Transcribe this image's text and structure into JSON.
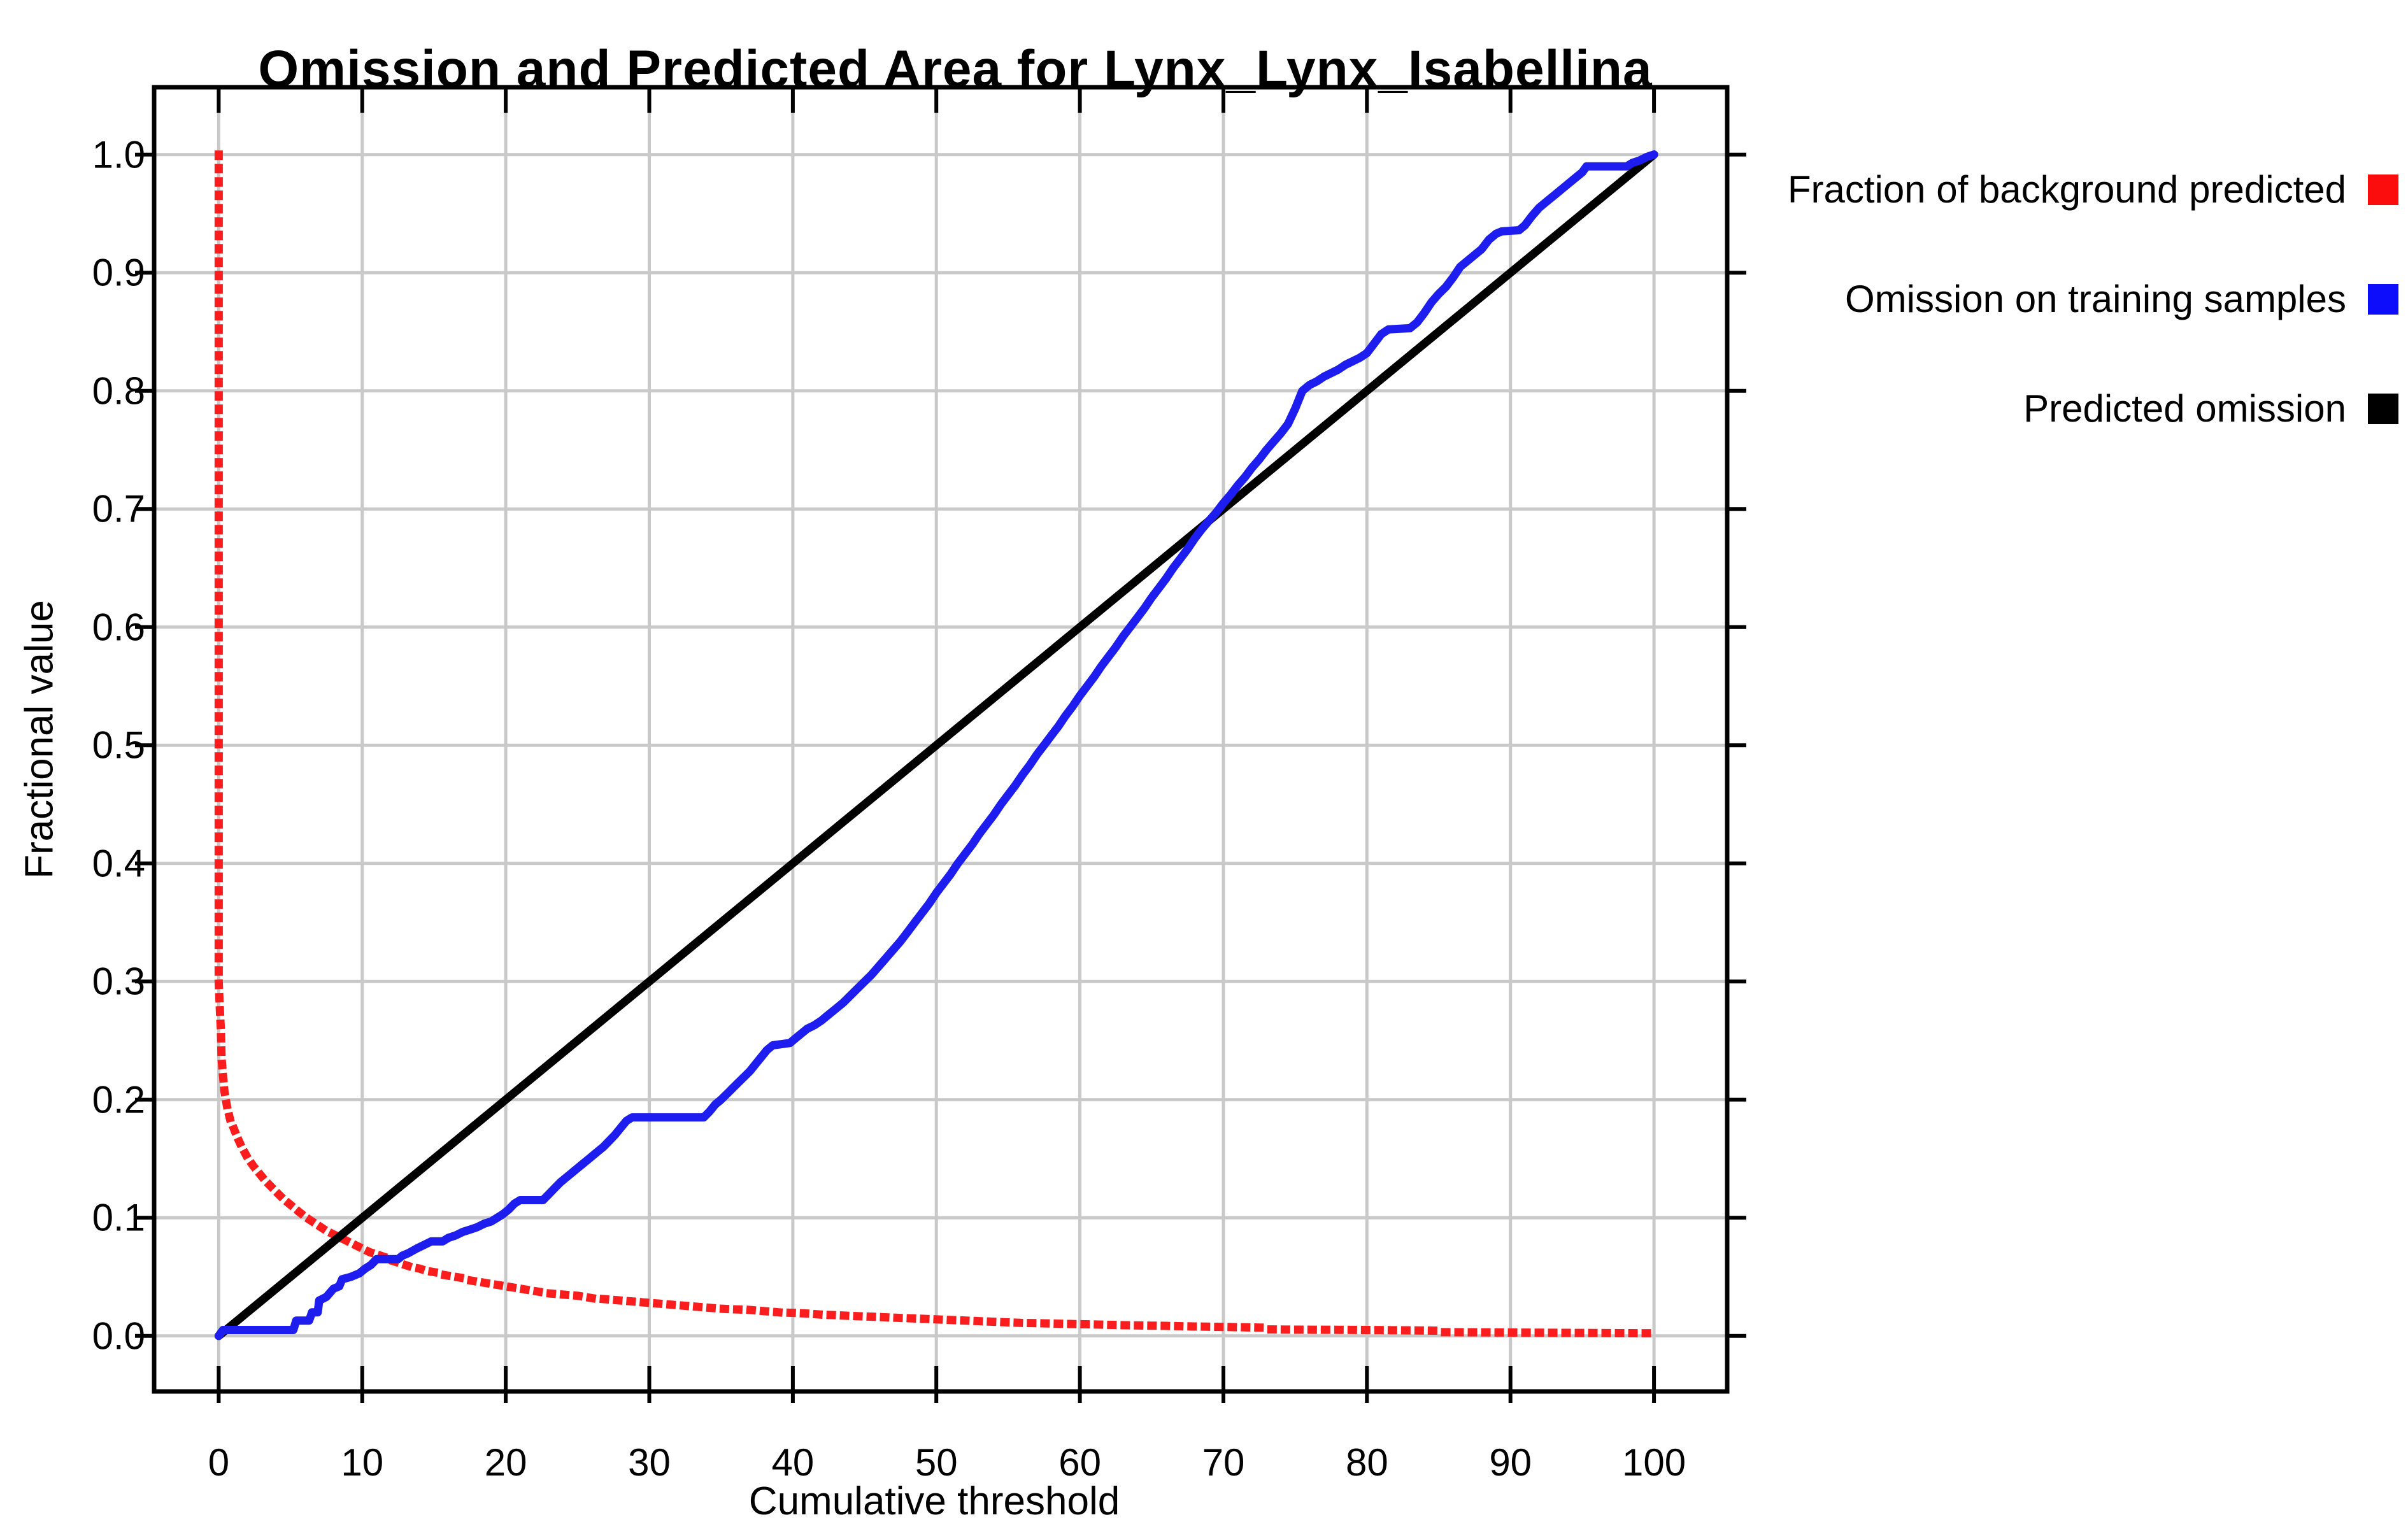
{
  "page": {
    "background": "#ffffff"
  },
  "chart_data": {
    "type": "line",
    "title": "Omission and Predicted Area for Lynx_Lynx_Isabellina",
    "xlabel": "Cumulative threshold",
    "ylabel": "Fractional value",
    "xlim": [
      -4.5,
      105.1
    ],
    "ylim": [
      -0.047,
      1.057
    ],
    "x_ticks": [
      0,
      10,
      20,
      30,
      40,
      50,
      60,
      70,
      80,
      90,
      100
    ],
    "x_tick_labels": [
      "0",
      "10",
      "20",
      "30",
      "40",
      "50",
      "60",
      "70",
      "80",
      "90",
      "100"
    ],
    "y_ticks": [
      0.0,
      0.1,
      0.2,
      0.3,
      0.4,
      0.5,
      0.6,
      0.7,
      0.8,
      0.9,
      1.0
    ],
    "y_tick_labels": [
      "0.0",
      "0.1",
      "0.2",
      "0.3",
      "0.4",
      "0.5",
      "0.6",
      "0.7",
      "0.8",
      "0.9",
      "1.0"
    ],
    "grid": true,
    "legend_position": "right-outside",
    "grid_color": "#c9c9c9",
    "axis_color": "#000000",
    "series": [
      {
        "name": "Fraction of background predicted",
        "color": "#fb1d1d",
        "style": "dotted",
        "z": 1,
        "points": [
          [
            0,
            1.0
          ],
          [
            0,
            0.3
          ],
          [
            0.1,
            0.27
          ],
          [
            0.15,
            0.26
          ],
          [
            0.2,
            0.235
          ],
          [
            0.3,
            0.22
          ],
          [
            0.4,
            0.207
          ],
          [
            0.6,
            0.193
          ],
          [
            0.8,
            0.183
          ],
          [
            1.0,
            0.177
          ],
          [
            1.3,
            0.168
          ],
          [
            1.6,
            0.16
          ],
          [
            2.0,
            0.151
          ],
          [
            2.4,
            0.144
          ],
          [
            2.8,
            0.138
          ],
          [
            3.2,
            0.132
          ],
          [
            3.6,
            0.127
          ],
          [
            4.0,
            0.122
          ],
          [
            4.5,
            0.116
          ],
          [
            5.0,
            0.111
          ],
          [
            5.5,
            0.106
          ],
          [
            6.0,
            0.101
          ],
          [
            6.5,
            0.097
          ],
          [
            7.0,
            0.093
          ],
          [
            7.5,
            0.089
          ],
          [
            8.0,
            0.086
          ],
          [
            8.5,
            0.083
          ],
          [
            9.0,
            0.08
          ],
          [
            9.5,
            0.077
          ],
          [
            10.0,
            0.074
          ],
          [
            10.5,
            0.071
          ],
          [
            11.0,
            0.069
          ],
          [
            11.5,
            0.067
          ],
          [
            12.0,
            0.064
          ],
          [
            12.5,
            0.062
          ],
          [
            13.0,
            0.06
          ],
          [
            13.5,
            0.058
          ],
          [
            14.0,
            0.057
          ],
          [
            14.5,
            0.055
          ],
          [
            15.0,
            0.054
          ],
          [
            15.5,
            0.052
          ],
          [
            16.0,
            0.051
          ],
          [
            16.5,
            0.05
          ],
          [
            17.0,
            0.049
          ],
          [
            17.5,
            0.047
          ],
          [
            18.0,
            0.046
          ],
          [
            18.5,
            0.045
          ],
          [
            19.0,
            0.044
          ],
          [
            19.5,
            0.043
          ],
          [
            20.0,
            0.042
          ],
          [
            21,
            0.04
          ],
          [
            22,
            0.038
          ],
          [
            23,
            0.036
          ],
          [
            24,
            0.035
          ],
          [
            25,
            0.034
          ],
          [
            26,
            0.032
          ],
          [
            27,
            0.031
          ],
          [
            28,
            0.03
          ],
          [
            29,
            0.029
          ],
          [
            30,
            0.028
          ],
          [
            31,
            0.027
          ],
          [
            32,
            0.026
          ],
          [
            33,
            0.025
          ],
          [
            34,
            0.024
          ],
          [
            35,
            0.023
          ],
          [
            36,
            0.0225
          ],
          [
            37,
            0.022
          ],
          [
            38,
            0.021
          ],
          [
            39,
            0.02
          ],
          [
            40,
            0.0195
          ],
          [
            41,
            0.019
          ],
          [
            42,
            0.018
          ],
          [
            43,
            0.0175
          ],
          [
            44,
            0.017
          ],
          [
            45,
            0.0165
          ],
          [
            46,
            0.016
          ],
          [
            47,
            0.0155
          ],
          [
            48,
            0.015
          ],
          [
            49,
            0.0145
          ],
          [
            50,
            0.014
          ],
          [
            51,
            0.0135
          ],
          [
            52,
            0.013
          ],
          [
            53,
            0.0125
          ],
          [
            54,
            0.012
          ],
          [
            55,
            0.0115
          ],
          [
            56,
            0.011
          ],
          [
            57,
            0.0108
          ],
          [
            58,
            0.0105
          ],
          [
            59,
            0.0102
          ],
          [
            60,
            0.01
          ],
          [
            61,
            0.0097
          ],
          [
            62,
            0.0094
          ],
          [
            63,
            0.0091
          ],
          [
            64,
            0.0089
          ],
          [
            65,
            0.0087
          ],
          [
            66,
            0.0085
          ],
          [
            67,
            0.0082
          ],
          [
            68,
            0.008
          ],
          [
            69,
            0.0078
          ],
          [
            70,
            0.0076
          ],
          [
            71,
            0.0074
          ],
          [
            72,
            0.0072
          ],
          [
            72.8,
            0.007
          ],
          [
            73.2,
            0.0055
          ],
          [
            75,
            0.0053
          ],
          [
            78,
            0.0052
          ],
          [
            80,
            0.005
          ],
          [
            82,
            0.0048
          ],
          [
            84,
            0.0046
          ],
          [
            84.8,
            0.0045
          ],
          [
            85.2,
            0.0032
          ],
          [
            88,
            0.003
          ],
          [
            91,
            0.0028
          ],
          [
            94,
            0.0026
          ],
          [
            97,
            0.0024
          ],
          [
            100,
            0.0022
          ]
        ]
      },
      {
        "name": "Omission on training samples",
        "color": "#1d1df0",
        "style": "solid",
        "z": 3,
        "points": [
          [
            0,
            0.0
          ],
          [
            0.3,
            0.005
          ],
          [
            5.2,
            0.005
          ],
          [
            5.4,
            0.013
          ],
          [
            6.3,
            0.013
          ],
          [
            6.5,
            0.02
          ],
          [
            6.9,
            0.02
          ],
          [
            7.0,
            0.03
          ],
          [
            7.5,
            0.033
          ],
          [
            8.0,
            0.04
          ],
          [
            8.4,
            0.042
          ],
          [
            8.6,
            0.048
          ],
          [
            9.2,
            0.05
          ],
          [
            9.8,
            0.053
          ],
          [
            10.2,
            0.057
          ],
          [
            10.6,
            0.06
          ],
          [
            11.0,
            0.065
          ],
          [
            12.5,
            0.065
          ],
          [
            12.8,
            0.068
          ],
          [
            13.2,
            0.07
          ],
          [
            13.8,
            0.074
          ],
          [
            14.3,
            0.077
          ],
          [
            14.8,
            0.08
          ],
          [
            15.6,
            0.08
          ],
          [
            16.0,
            0.083
          ],
          [
            16.5,
            0.085
          ],
          [
            17.0,
            0.088
          ],
          [
            17.5,
            0.09
          ],
          [
            18.0,
            0.092
          ],
          [
            18.5,
            0.095
          ],
          [
            19.0,
            0.097
          ],
          [
            19.4,
            0.1
          ],
          [
            19.8,
            0.103
          ],
          [
            20.2,
            0.107
          ],
          [
            20.6,
            0.112
          ],
          [
            21.0,
            0.115
          ],
          [
            22.6,
            0.115
          ],
          [
            23.0,
            0.12
          ],
          [
            23.4,
            0.125
          ],
          [
            23.8,
            0.13
          ],
          [
            24.3,
            0.135
          ],
          [
            24.8,
            0.14
          ],
          [
            25.3,
            0.145
          ],
          [
            25.8,
            0.15
          ],
          [
            26.3,
            0.155
          ],
          [
            26.8,
            0.16
          ],
          [
            27.2,
            0.165
          ],
          [
            27.6,
            0.17
          ],
          [
            28.0,
            0.176
          ],
          [
            28.4,
            0.182
          ],
          [
            28.8,
            0.185
          ],
          [
            33.8,
            0.185
          ],
          [
            34.2,
            0.19
          ],
          [
            34.6,
            0.196
          ],
          [
            35.0,
            0.2
          ],
          [
            35.5,
            0.206
          ],
          [
            36.0,
            0.212
          ],
          [
            36.5,
            0.218
          ],
          [
            37.0,
            0.224
          ],
          [
            37.4,
            0.23
          ],
          [
            37.8,
            0.236
          ],
          [
            38.2,
            0.242
          ],
          [
            38.6,
            0.246
          ],
          [
            39.8,
            0.248
          ],
          [
            40.2,
            0.252
          ],
          [
            40.6,
            0.256
          ],
          [
            41.0,
            0.26
          ],
          [
            41.5,
            0.263
          ],
          [
            42.0,
            0.267
          ],
          [
            42.5,
            0.272
          ],
          [
            43.0,
            0.277
          ],
          [
            43.5,
            0.282
          ],
          [
            44.0,
            0.288
          ],
          [
            44.5,
            0.294
          ],
          [
            45.0,
            0.3
          ],
          [
            45.5,
            0.306
          ],
          [
            46.0,
            0.313
          ],
          [
            46.5,
            0.32
          ],
          [
            47.0,
            0.327
          ],
          [
            47.5,
            0.334
          ],
          [
            48.0,
            0.342
          ],
          [
            48.5,
            0.35
          ],
          [
            49.0,
            0.358
          ],
          [
            49.5,
            0.366
          ],
          [
            50.0,
            0.375
          ],
          [
            50.5,
            0.383
          ],
          [
            51.0,
            0.391
          ],
          [
            51.5,
            0.4
          ],
          [
            52.0,
            0.408
          ],
          [
            52.5,
            0.416
          ],
          [
            53.0,
            0.425
          ],
          [
            53.5,
            0.433
          ],
          [
            54.0,
            0.441
          ],
          [
            54.5,
            0.45
          ],
          [
            55.0,
            0.458
          ],
          [
            55.5,
            0.466
          ],
          [
            56.0,
            0.475
          ],
          [
            56.5,
            0.483
          ],
          [
            57.0,
            0.492
          ],
          [
            57.5,
            0.5
          ],
          [
            58.0,
            0.508
          ],
          [
            58.5,
            0.516
          ],
          [
            59.0,
            0.525
          ],
          [
            59.5,
            0.533
          ],
          [
            60.0,
            0.542
          ],
          [
            60.5,
            0.55
          ],
          [
            61.0,
            0.558
          ],
          [
            61.5,
            0.567
          ],
          [
            62.0,
            0.575
          ],
          [
            62.5,
            0.583
          ],
          [
            63.0,
            0.592
          ],
          [
            63.5,
            0.6
          ],
          [
            64.0,
            0.608
          ],
          [
            64.5,
            0.616
          ],
          [
            65.0,
            0.625
          ],
          [
            65.5,
            0.633
          ],
          [
            66.0,
            0.641
          ],
          [
            66.5,
            0.65
          ],
          [
            67.0,
            0.658
          ],
          [
            67.5,
            0.666
          ],
          [
            68.0,
            0.675
          ],
          [
            68.5,
            0.683
          ],
          [
            69.0,
            0.69
          ],
          [
            69.5,
            0.697
          ],
          [
            70.0,
            0.705
          ],
          [
            70.5,
            0.712
          ],
          [
            71.0,
            0.72
          ],
          [
            71.5,
            0.727
          ],
          [
            72.0,
            0.735
          ],
          [
            72.5,
            0.742
          ],
          [
            73.0,
            0.75
          ],
          [
            73.5,
            0.757
          ],
          [
            74.0,
            0.764
          ],
          [
            74.5,
            0.772
          ],
          [
            75.0,
            0.785
          ],
          [
            75.5,
            0.8
          ],
          [
            76.0,
            0.805
          ],
          [
            76.5,
            0.808
          ],
          [
            77.0,
            0.812
          ],
          [
            77.5,
            0.815
          ],
          [
            78.0,
            0.818
          ],
          [
            78.5,
            0.822
          ],
          [
            79.0,
            0.825
          ],
          [
            79.5,
            0.828
          ],
          [
            80.0,
            0.832
          ],
          [
            80.5,
            0.84
          ],
          [
            81.0,
            0.848
          ],
          [
            81.5,
            0.852
          ],
          [
            83.0,
            0.853
          ],
          [
            83.5,
            0.858
          ],
          [
            84.0,
            0.866
          ],
          [
            84.5,
            0.875
          ],
          [
            85.0,
            0.882
          ],
          [
            85.5,
            0.888
          ],
          [
            86.0,
            0.896
          ],
          [
            86.5,
            0.905
          ],
          [
            87.0,
            0.91
          ],
          [
            87.5,
            0.915
          ],
          [
            88.0,
            0.92
          ],
          [
            88.5,
            0.928
          ],
          [
            89.0,
            0.933
          ],
          [
            89.4,
            0.935
          ],
          [
            90.6,
            0.936
          ],
          [
            91.0,
            0.94
          ],
          [
            91.5,
            0.948
          ],
          [
            92.0,
            0.955
          ],
          [
            92.5,
            0.96
          ],
          [
            93.0,
            0.965
          ],
          [
            93.5,
            0.97
          ],
          [
            94.0,
            0.975
          ],
          [
            94.5,
            0.98
          ],
          [
            95.0,
            0.985
          ],
          [
            95.3,
            0.99
          ],
          [
            98.1,
            0.99
          ],
          [
            98.5,
            0.993
          ],
          [
            99.0,
            0.995
          ],
          [
            99.5,
            0.998
          ],
          [
            100,
            1.0
          ]
        ]
      },
      {
        "name": "Predicted omission",
        "color": "#000000",
        "style": "solid",
        "z": 2,
        "points": [
          [
            0,
            0.0
          ],
          [
            100,
            1.0
          ]
        ]
      }
    ]
  },
  "legend": {
    "items": [
      {
        "label": "Fraction of background predicted",
        "swatch": "#fc0d0d"
      },
      {
        "label": "Omission on training samples",
        "swatch": "#0d0dfc"
      },
      {
        "label": "Predicted omission",
        "swatch": "#000000"
      }
    ]
  }
}
